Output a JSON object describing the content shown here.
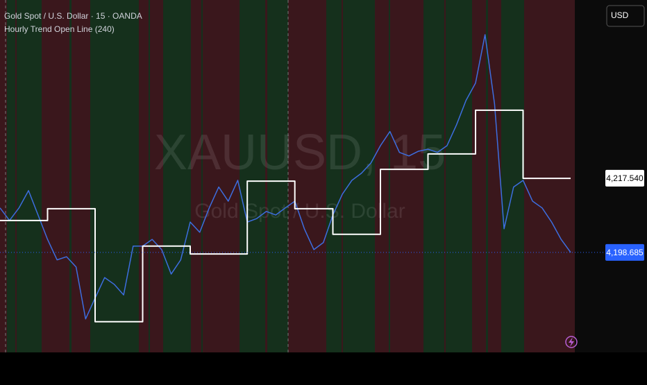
{
  "chart_data": {
    "type": "line",
    "title": "Gold Spot / U.S. Dollar · 15 · OANDA",
    "subtitle": "Hourly Trend Open Line (240)",
    "watermark": "XAUUSD, 15",
    "watermark_subtitle": "Gold Spot / U.S. Dollar",
    "currency": "USD",
    "ylim": [
      4173.3,
      4262.8
    ],
    "series": [
      {
        "name": "XAUUSD",
        "color": "#3d6ee0",
        "values": [
          4210.0,
          4206.8,
          4210.0,
          4214.4,
          4208.2,
          4202.0,
          4196.8,
          4197.6,
          4195.0,
          4181.8,
          4187.1,
          4192.3,
          4190.6,
          4187.9,
          4200.3,
          4200.3,
          4202.0,
          4199.4,
          4193.2,
          4196.8,
          4206.4,
          4203.8,
          4210.0,
          4215.3,
          4211.7,
          4217.0,
          4206.4,
          4207.3,
          4209.1,
          4208.2,
          4210.0,
          4211.7,
          4204.7,
          4199.4,
          4201.2,
          4208.2,
          4213.5,
          4217.0,
          4218.8,
          4221.4,
          4225.8,
          4229.4,
          4224.1,
          4223.2,
          4224.4,
          4224.9,
          4224.1,
          4225.8,
          4231.1,
          4237.3,
          4241.7,
          4254.0,
          4236.4,
          4204.7,
          4215.3,
          4217.0,
          4211.7,
          4210.0,
          4206.4,
          4202.0,
          4198.7
        ]
      },
      {
        "name": "Hourly Trend Open Line",
        "color": "#ffffff",
        "step": true,
        "values": [
          4206.8,
          4206.8,
          4206.8,
          4206.8,
          4206.8,
          4209.8,
          4209.8,
          4209.8,
          4209.8,
          4209.8,
          4181.1,
          4181.1,
          4181.1,
          4181.1,
          4181.1,
          4200.3,
          4200.3,
          4200.3,
          4200.3,
          4200.3,
          4198.3,
          4198.3,
          4198.3,
          4198.3,
          4198.3,
          4198.3,
          4216.8,
          4216.8,
          4216.8,
          4216.8,
          4216.8,
          4209.8,
          4209.8,
          4209.8,
          4209.8,
          4203.3,
          4203.3,
          4203.3,
          4203.3,
          4203.3,
          4219.8,
          4219.8,
          4219.8,
          4219.8,
          4219.8,
          4223.7,
          4223.7,
          4223.7,
          4223.7,
          4223.7,
          4234.8,
          4234.8,
          4234.8,
          4234.8,
          4234.8,
          4217.5,
          4217.5,
          4217.5,
          4217.5,
          4217.5,
          4217.5
        ]
      }
    ],
    "price_labels": [
      {
        "value": 4217.54,
        "label": "4,217.540",
        "color": "#ffffff",
        "text_color": "#000000"
      },
      {
        "value": 4198.685,
        "label": "4,198.685",
        "color": "#2962ff",
        "text_color": "#ffffff"
      }
    ]
  }
}
